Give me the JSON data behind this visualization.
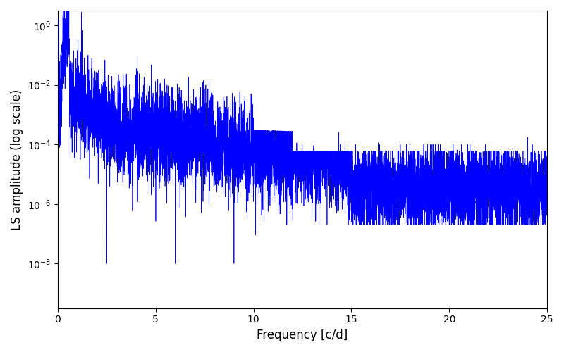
{
  "title": "",
  "xlabel": "Frequency [c/d]",
  "ylabel": "LS amplitude (log scale)",
  "xlim": [
    0,
    25
  ],
  "ylim_log": [
    -9.5,
    0.5
  ],
  "line_color": "#0000FF",
  "line_width": 0.5,
  "yscale": "log",
  "yticks": [
    1e-08,
    1e-06,
    0.0001,
    0.01,
    1.0
  ],
  "xticks": [
    0,
    5,
    10,
    15,
    20,
    25
  ],
  "seed": 12345,
  "n_points": 8000,
  "freq_max": 25.0,
  "background_color": "#ffffff"
}
